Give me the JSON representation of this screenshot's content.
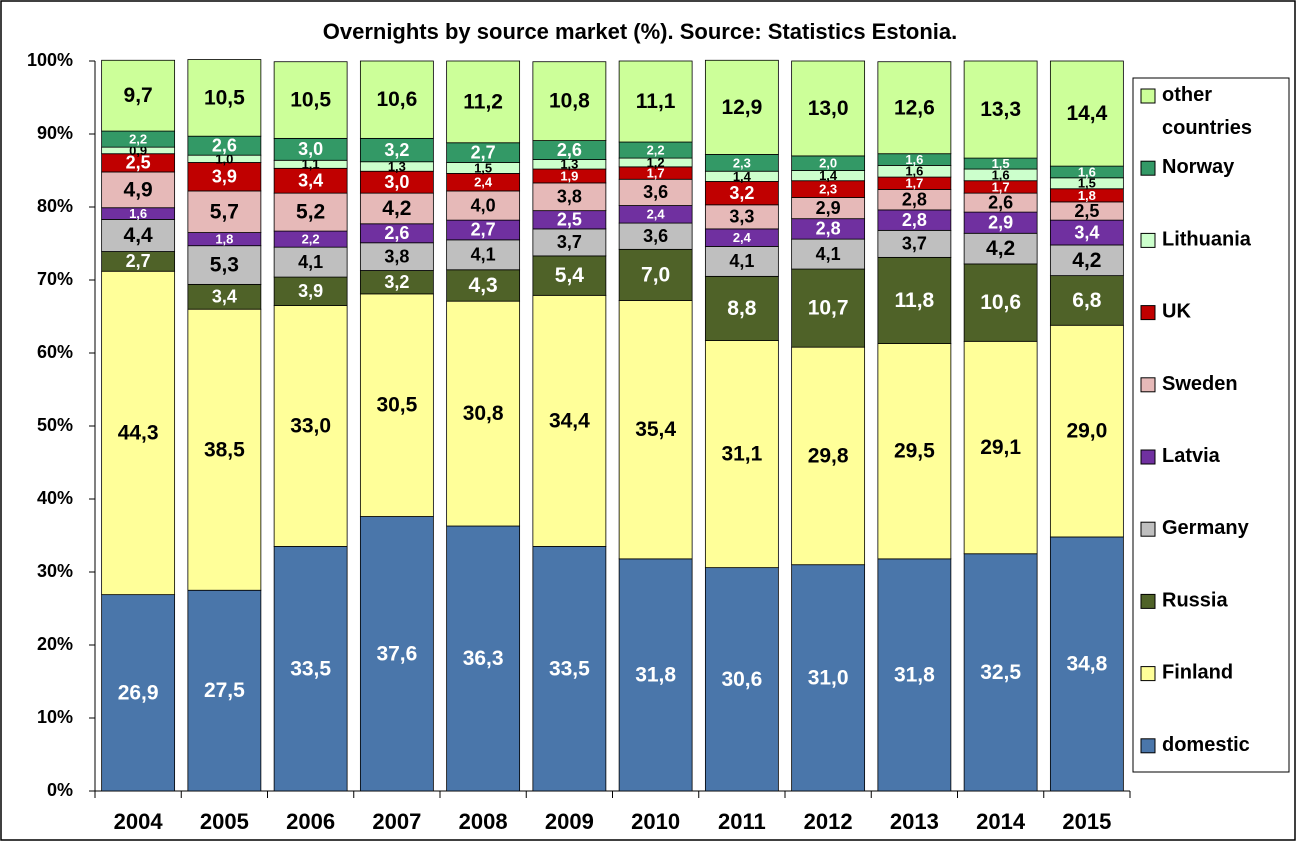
{
  "chart_data": {
    "type": "stacked_bar",
    "title": "Overnights by source market (%). Source: Statistics Estonia.",
    "categories": [
      "2004",
      "2005",
      "2006",
      "2007",
      "2008",
      "2009",
      "2010",
      "2011",
      "2012",
      "2013",
      "2014",
      "2015"
    ],
    "ylim": [
      0,
      100
    ],
    "yticks": [
      {
        "value": 0,
        "label": "0%"
      },
      {
        "value": 10,
        "label": "10%"
      },
      {
        "value": 20,
        "label": "20%"
      },
      {
        "value": 30,
        "label": "30%"
      },
      {
        "value": 40,
        "label": "40%"
      },
      {
        "value": 50,
        "label": "50%"
      },
      {
        "value": 60,
        "label": "60%"
      },
      {
        "value": 70,
        "label": "70%"
      },
      {
        "value": 80,
        "label": "80%"
      },
      {
        "value": 90,
        "label": "90%"
      },
      {
        "value": 100,
        "label": "100%"
      }
    ],
    "legend": "right",
    "series": [
      {
        "name": "domestic",
        "color": "#4a76aa",
        "label_color": "#ffffff",
        "values": [
          26.9,
          27.5,
          33.5,
          37.6,
          36.3,
          33.5,
          31.8,
          30.6,
          31.0,
          31.8,
          32.5,
          34.8
        ],
        "value_labels": [
          "26,9",
          "27,5",
          "33,5",
          "37,6",
          "36,3",
          "33,5",
          "31,8",
          "30,6",
          "31,0",
          "31,8",
          "32,5",
          "34,8"
        ]
      },
      {
        "name": "Finland",
        "color": "#ffff99",
        "label_color": "#000000",
        "values": [
          44.3,
          38.5,
          33.0,
          30.5,
          30.8,
          34.4,
          35.4,
          31.1,
          29.8,
          29.5,
          29.1,
          29.0
        ],
        "value_labels": [
          "44,3",
          "38,5",
          "33,0",
          "30,5",
          "30,8",
          "34,4",
          "35,4",
          "31,1",
          "29,8",
          "29,5",
          "29,1",
          "29,0"
        ]
      },
      {
        "name": "Russia",
        "color": "#4f6228",
        "label_color": "#ffffff",
        "values": [
          2.7,
          3.4,
          3.9,
          3.2,
          4.3,
          5.4,
          7.0,
          8.8,
          10.7,
          11.8,
          10.6,
          6.8
        ],
        "value_labels": [
          "2,7",
          "3,4",
          "3,9",
          "3,2",
          "4,3",
          "5,4",
          "7,0",
          "8,8",
          "10,7",
          "11,8",
          "10,6",
          "6,8"
        ]
      },
      {
        "name": "Germany",
        "color": "#bfbfbf",
        "label_color": "#000000",
        "values": [
          4.4,
          5.3,
          4.1,
          3.8,
          4.1,
          3.7,
          3.6,
          4.1,
          4.1,
          3.7,
          4.2,
          4.2
        ],
        "value_labels": [
          "4,4",
          "5,3",
          "4,1",
          "3,8",
          "4,1",
          "3,7",
          "3,6",
          "4,1",
          "4,1",
          "3,7",
          "4,2",
          "4,2"
        ]
      },
      {
        "name": "Latvia",
        "color": "#7030a0",
        "label_color": "#ffffff",
        "values": [
          1.6,
          1.8,
          2.2,
          2.6,
          2.7,
          2.5,
          2.4,
          2.4,
          2.8,
          2.8,
          2.9,
          3.4
        ],
        "value_labels": [
          "1,6",
          "1,8",
          "2,2",
          "2,6",
          "2,7",
          "2,5",
          "2,4",
          "2,4",
          "2,8",
          "2,8",
          "2,9",
          "3,4"
        ]
      },
      {
        "name": "Sweden",
        "color": "#e6b9b8",
        "label_color": "#000000",
        "values": [
          4.9,
          5.7,
          5.2,
          4.2,
          4.0,
          3.8,
          3.6,
          3.3,
          2.9,
          2.8,
          2.6,
          2.5
        ],
        "value_labels": [
          "4,9",
          "5,7",
          "5,2",
          "4,2",
          "4,0",
          "3,8",
          "3,6",
          "3,3",
          "2,9",
          "2,8",
          "2,6",
          "2,5"
        ]
      },
      {
        "name": "UK",
        "color": "#c00000",
        "label_color": "#ffffff",
        "values": [
          2.5,
          3.9,
          3.4,
          3.0,
          2.4,
          1.9,
          1.7,
          3.2,
          2.3,
          1.7,
          1.7,
          1.8
        ],
        "value_labels": [
          "2,5",
          "3,9",
          "3,4",
          "3,0",
          "2,4",
          "1,9",
          "1,7",
          "3,2",
          "2,3",
          "1,7",
          "1,7",
          "1,8"
        ]
      },
      {
        "name": "Lithuania",
        "color": "#ccffcc",
        "label_color": "#000000",
        "values": [
          0.9,
          1.0,
          1.1,
          1.3,
          1.5,
          1.3,
          1.2,
          1.4,
          1.4,
          1.6,
          1.6,
          1.5
        ],
        "value_labels": [
          "0,9",
          "1,0",
          "1,1",
          "1,3",
          "1,5",
          "1,3",
          "1,2",
          "1,4",
          "1,4",
          "1,6",
          "1,6",
          "1,5"
        ]
      },
      {
        "name": "Norway",
        "color": "#339966",
        "label_color": "#ffffff",
        "values": [
          2.2,
          2.6,
          3.0,
          3.2,
          2.7,
          2.6,
          2.2,
          2.3,
          2.0,
          1.6,
          1.5,
          1.6
        ],
        "value_labels": [
          "2,2",
          "2,6",
          "3,0",
          "3,2",
          "2,7",
          "2,6",
          "2,2",
          "2,3",
          "2,0",
          "1,6",
          "1,5",
          "1,6"
        ]
      },
      {
        "name": "other countries",
        "color": "#ccff99",
        "label_color": "#000000",
        "values": [
          9.7,
          10.5,
          10.5,
          10.6,
          11.2,
          10.8,
          11.1,
          12.9,
          13.0,
          12.6,
          13.3,
          14.4
        ],
        "value_labels": [
          "9,7",
          "10,5",
          "10,5",
          "10,6",
          "11,2",
          "10,8",
          "11,1",
          "12,9",
          "13,0",
          "12,6",
          "13,3",
          "14,4"
        ]
      }
    ]
  }
}
